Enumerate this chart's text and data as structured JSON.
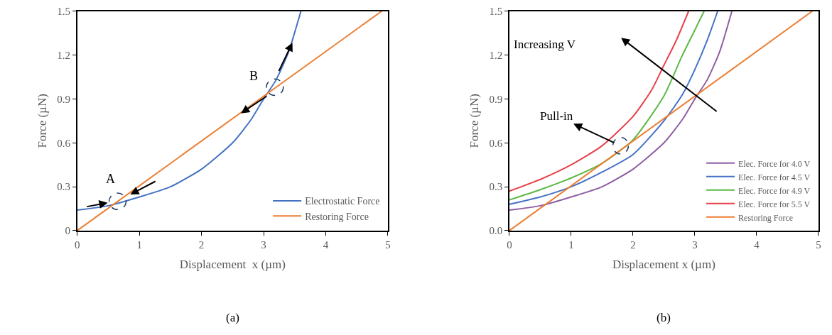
{
  "chart_data": [
    {
      "type": "line",
      "xlabel": "Displacement  x (µm)",
      "ylabel": "Force (µN)",
      "xlim": [
        0,
        5
      ],
      "ylim": [
        0,
        1.5
      ],
      "xticks": [
        0,
        1,
        2,
        3,
        4,
        5
      ],
      "yticks": [
        0,
        0.3,
        0.6,
        0.9,
        1.2,
        1.5
      ],
      "legend": "bottom right",
      "marker": "none",
      "line_style": "solid",
      "series": [
        {
          "name": "Electrostatic Force",
          "color": "#4472c4",
          "x": [
            0,
            0.5,
            1,
            1.5,
            2,
            2.5,
            2.8,
            3,
            3.2,
            3.4,
            3.6
          ],
          "values": [
            0.14,
            0.17,
            0.23,
            0.3,
            0.42,
            0.6,
            0.76,
            0.9,
            1.03,
            1.22,
            1.5
          ]
        },
        {
          "name": "Restoring Force",
          "color": "#ed7d31",
          "x": [
            0,
            4.9
          ],
          "values": [
            0,
            1.5
          ]
        }
      ],
      "annotations": [
        {
          "text": "A",
          "x": 0.65,
          "y": 0.2
        },
        {
          "text": "B",
          "x": 3.18,
          "y": 0.98
        },
        "(a)"
      ]
    },
    {
      "type": "line",
      "xlabel": "Displacement x (µm)",
      "ylabel": "Force (µN)",
      "xlim": [
        0,
        5
      ],
      "ylim": [
        0,
        1.5
      ],
      "xticks": [
        0,
        1,
        2,
        3,
        4,
        5
      ],
      "yticks": [
        {
          "value": 0,
          "label": "0.0"
        },
        0.3,
        0.6,
        0.9,
        1.2,
        1.5
      ],
      "legend": "bottom right",
      "marker": "none",
      "line_style": "solid",
      "series": [
        {
          "name": "Elec. Force for 4.0 V",
          "color": "#8e5ea2",
          "x": [
            0,
            0.5,
            1,
            1.5,
            2,
            2.5,
            2.8,
            3,
            3.2,
            3.4,
            3.6
          ],
          "values": [
            0.14,
            0.17,
            0.23,
            0.3,
            0.42,
            0.6,
            0.76,
            0.9,
            1.03,
            1.22,
            1.5
          ]
        },
        {
          "name": "Elec. Force for 4.5 V",
          "color": "#4472c4",
          "x": [
            0,
            0.5,
            1,
            1.5,
            2,
            2.5,
            2.8,
            3,
            3.2,
            3.37
          ],
          "values": [
            0.18,
            0.23,
            0.3,
            0.4,
            0.52,
            0.75,
            0.93,
            1.1,
            1.3,
            1.5
          ]
        },
        {
          "name": "Elec. Force for 4.9 V",
          "color": "#5cb946",
          "x": [
            0,
            0.5,
            1,
            1.5,
            2,
            2.5,
            2.8,
            3,
            3.15
          ],
          "values": [
            0.21,
            0.28,
            0.36,
            0.46,
            0.62,
            0.92,
            1.2,
            1.37,
            1.5
          ]
        },
        {
          "name": "Elec. Force for 5.5 V",
          "color": "#e8424a",
          "x": [
            0,
            0.5,
            1,
            1.5,
            2,
            2.3,
            2.5,
            2.7,
            2.9
          ],
          "values": [
            0.27,
            0.35,
            0.45,
            0.58,
            0.78,
            0.96,
            1.13,
            1.3,
            1.5
          ]
        },
        {
          "name": "Restoring Force",
          "color": "#ed7d31",
          "x": [
            0,
            4.9
          ],
          "values": [
            0,
            1.5
          ]
        }
      ],
      "annotations": [
        "Increasing V",
        {
          "text": "Pull-in",
          "x": 1.8,
          "y": 0.58
        },
        "(b)"
      ]
    }
  ]
}
